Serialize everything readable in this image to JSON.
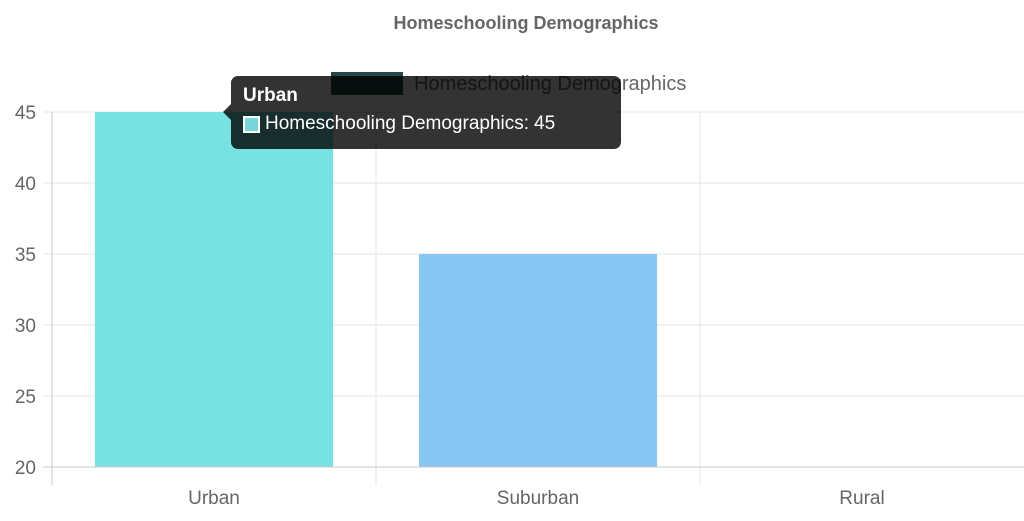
{
  "chart_data": {
    "type": "bar",
    "title": "Homeschooling Demographics",
    "categories": [
      "Urban",
      "Suburban",
      "Rural"
    ],
    "series": [
      {
        "name": "Homeschooling Demographics",
        "values": [
          45,
          35,
          20
        ],
        "colors": [
          "#77e2e2",
          "#88c6f3",
          "#f1dd93"
        ]
      }
    ],
    "legend_color": "#244848",
    "ylim": [
      20,
      45
    ],
    "yticks": [
      "45",
      "40",
      "35",
      "30",
      "25",
      "20"
    ],
    "grid": true,
    "legend_position": "top"
  },
  "tooltip": {
    "title": "Urban",
    "series_label": "Homeschooling Demographics",
    "separator": ":",
    "value": "45"
  }
}
